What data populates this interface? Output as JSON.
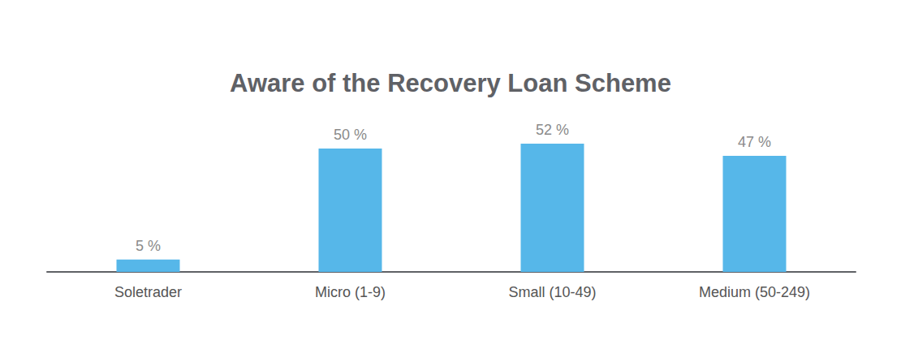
{
  "chart_data": {
    "type": "bar",
    "title": "Aware of the Recovery Loan Scheme",
    "categories": [
      "Soletrader",
      "Micro (1-9)",
      "Small (10-49)",
      "Medium (50-249)"
    ],
    "values": [
      5,
      50,
      52,
      47
    ],
    "value_labels": [
      "5 %",
      "50 %",
      "52 %",
      "47 %"
    ],
    "color": "#56b7e9",
    "ylim": [
      0,
      100
    ],
    "grid": false,
    "data_labels": true,
    "tick_labels": "x"
  }
}
